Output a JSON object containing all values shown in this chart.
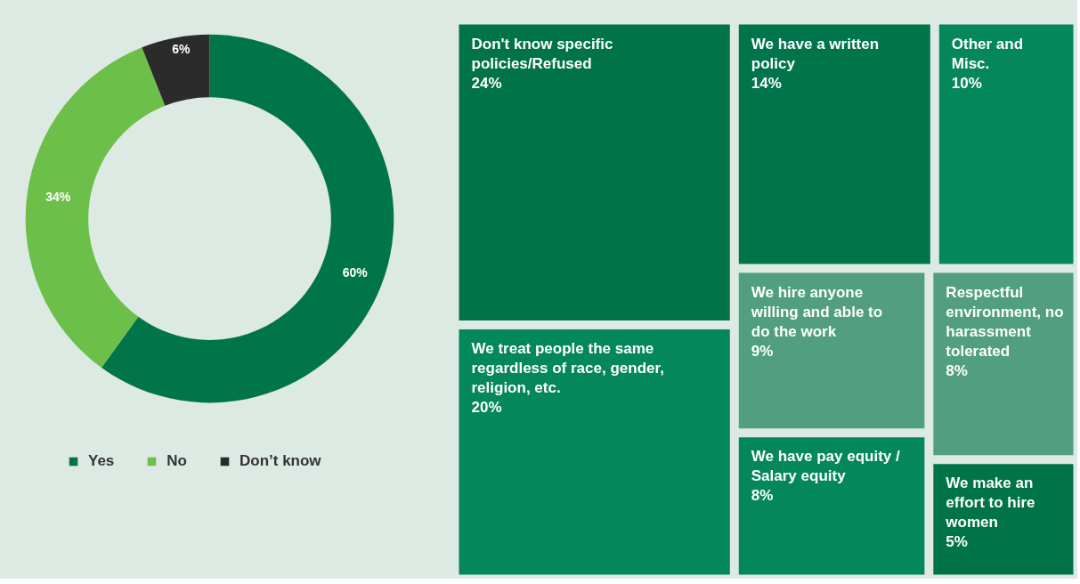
{
  "chart_data": [
    {
      "type": "donut",
      "categories": [
        "Yes",
        "No",
        "Don’t know"
      ],
      "values": [
        60,
        34,
        6
      ],
      "colors": [
        "#00754a",
        "#6cc04a",
        "#2b2b2b"
      ],
      "value_labels": [
        "60%",
        "34%",
        "6%"
      ],
      "legend": "bottom"
    },
    {
      "type": "other",
      "categories": [
        "Don't know specific policies/Refused",
        "We treat people the same regardless of race, gender, religion, etc.",
        "We have a written policy",
        "Other and Misc.",
        "We hire anyone willing and able to do the work",
        "We have pay equity / Salary equity",
        "Respectful environment, no harassment tolerated",
        "We make an effort to hire women"
      ],
      "values": [
        24,
        20,
        14,
        10,
        9,
        8,
        8,
        5
      ],
      "value_labels": [
        "24%",
        "20%",
        "14%",
        "10%",
        "9%",
        "8%",
        "8%",
        "5%"
      ],
      "colors": [
        "#007448",
        "#05875c",
        "#00744a",
        "#05875c",
        "#519f80",
        "#05875c",
        "#519f80",
        "#007448"
      ]
    }
  ]
}
